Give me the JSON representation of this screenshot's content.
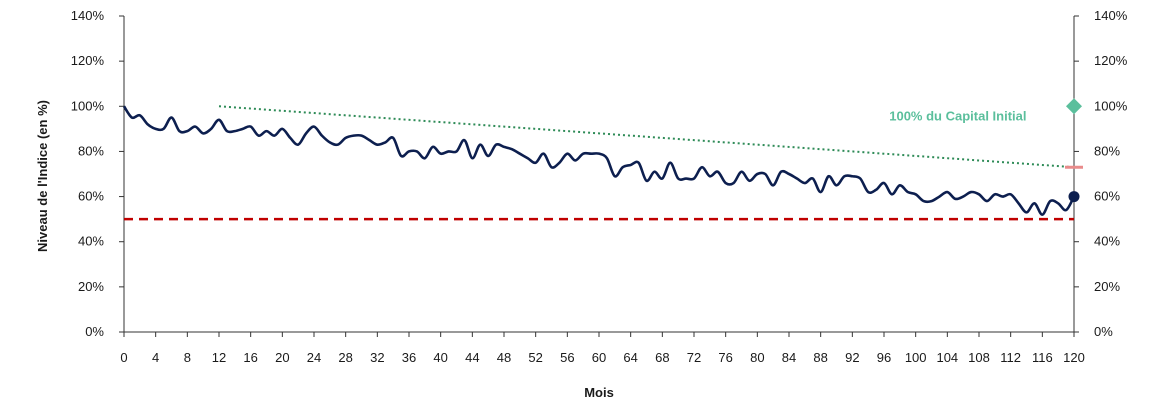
{
  "chart_data": {
    "type": "line",
    "xlabel": "Mois",
    "ylabel": "Niveau de l'Indice (en %)",
    "xlim": [
      0,
      120
    ],
    "ylim": [
      0,
      140
    ],
    "x_ticks": [
      "0",
      "4",
      "8",
      "12",
      "16",
      "20",
      "24",
      "28",
      "32",
      "36",
      "40",
      "44",
      "48",
      "52",
      "56",
      "60",
      "64",
      "68",
      "72",
      "76",
      "80",
      "84",
      "88",
      "92",
      "96",
      "100",
      "104",
      "108",
      "112",
      "116",
      "120"
    ],
    "y_ticks_left": [
      "0%",
      "20%",
      "40%",
      "60%",
      "80%",
      "100%",
      "120%",
      "140%"
    ],
    "y_ticks_right": [
      "0%",
      "20%",
      "40%",
      "60%",
      "80%",
      "100%",
      "120%",
      "140%"
    ],
    "grid": false,
    "series": [
      {
        "kind": "index-path",
        "color": "#0d1f4f",
        "x": [
          0,
          1,
          2,
          3,
          4,
          5,
          6,
          7,
          8,
          9,
          10,
          11,
          12,
          13,
          14,
          15,
          16,
          17,
          18,
          19,
          20,
          21,
          22,
          23,
          24,
          25,
          26,
          27,
          28,
          29,
          30,
          31,
          32,
          33,
          34,
          35,
          36,
          37,
          38,
          39,
          40,
          41,
          42,
          43,
          44,
          45,
          46,
          47,
          48,
          49,
          50,
          51,
          52,
          53,
          54,
          55,
          56,
          57,
          58,
          59,
          60,
          61,
          62,
          63,
          64,
          65,
          66,
          67,
          68,
          69,
          70,
          71,
          72,
          73,
          74,
          75,
          76,
          77,
          78,
          79,
          80,
          81,
          82,
          83,
          84,
          85,
          86,
          87,
          88,
          89,
          90,
          91,
          92,
          93,
          94,
          95,
          96,
          97,
          98,
          99,
          100,
          101,
          102,
          103,
          104,
          105,
          106,
          107,
          108,
          109,
          110,
          111,
          112,
          113,
          114,
          115,
          116,
          117,
          118,
          119,
          120
        ],
        "values": [
          100,
          95,
          96,
          92,
          90,
          90,
          95,
          89,
          89,
          91,
          88,
          90,
          94,
          89,
          89,
          90,
          91,
          87,
          89,
          87,
          90,
          86,
          83,
          88,
          91,
          87,
          84,
          83,
          86,
          87,
          87,
          85,
          83,
          84,
          86,
          78,
          80,
          80,
          77,
          82,
          79,
          80,
          80,
          85,
          77,
          83,
          78,
          83,
          82,
          81,
          79,
          77,
          75,
          79,
          73,
          75,
          79,
          76,
          79,
          79,
          79,
          77,
          69,
          73,
          74,
          75,
          67,
          71,
          68,
          75,
          68,
          68,
          68,
          73,
          69,
          71,
          66,
          66,
          71,
          67,
          70,
          70,
          65,
          71,
          70,
          68,
          66,
          68,
          62,
          69,
          65,
          69,
          69,
          68,
          62,
          63,
          66,
          61,
          65,
          62,
          61,
          58,
          58,
          60,
          62,
          59,
          60,
          62,
          61,
          58,
          61,
          60,
          61,
          57,
          53,
          57,
          52,
          58,
          57,
          54,
          60
        ]
      },
      {
        "kind": "capital-initial-line",
        "color": "#2e8b57",
        "x": [
          12,
          120
        ],
        "values": [
          100,
          73
        ]
      },
      {
        "kind": "barrier",
        "color": "#c00000",
        "x": [
          0,
          120
        ],
        "values": [
          50,
          50
        ]
      }
    ],
    "markers": [
      {
        "kind": "diamond",
        "color": "#5bbf9c",
        "x": 120,
        "y": 100
      },
      {
        "kind": "circle",
        "color": "#0d1f4f",
        "x": 120,
        "y": 60
      },
      {
        "kind": "dash",
        "color": "#e98b8b",
        "x": 120,
        "y": 73
      }
    ],
    "annotations": [
      {
        "text": "100% du Capital Initial",
        "color": "#5bbf9c",
        "x": 114,
        "y": 100
      }
    ]
  }
}
